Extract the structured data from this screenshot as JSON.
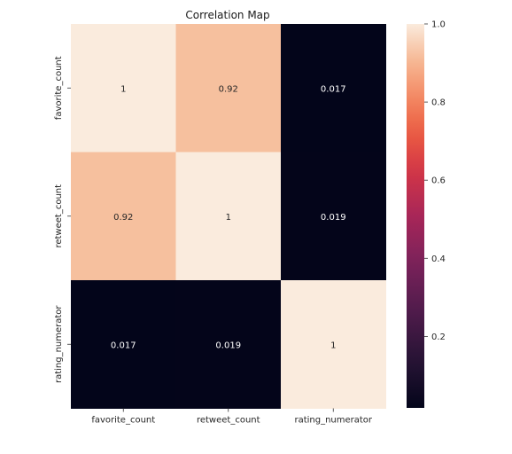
{
  "chart_data": {
    "type": "heatmap",
    "title": "Correlation Map",
    "xlabel": "",
    "ylabel": "",
    "x_categories": [
      "favorite_count",
      "retweet_count",
      "rating_numerator"
    ],
    "y_categories": [
      "favorite_count",
      "retweet_count",
      "rating_numerator"
    ],
    "values": [
      [
        1.0,
        0.92,
        0.017
      ],
      [
        0.92,
        1.0,
        0.019
      ],
      [
        0.017,
        0.019,
        1.0
      ]
    ],
    "annotations": [
      [
        "1",
        "0.92",
        "0.017"
      ],
      [
        "0.92",
        "1",
        "0.019"
      ],
      [
        "0.017",
        "0.019",
        "1"
      ]
    ],
    "colorbar": {
      "vmin": 0.017,
      "vmax": 1.0,
      "ticks": [
        0.2,
        0.4,
        0.6,
        0.8,
        1.0
      ],
      "tick_labels": [
        "0.2",
        "0.4",
        "0.6",
        "0.8",
        "1.0"
      ],
      "colormap": "rocket"
    },
    "grid": false
  }
}
